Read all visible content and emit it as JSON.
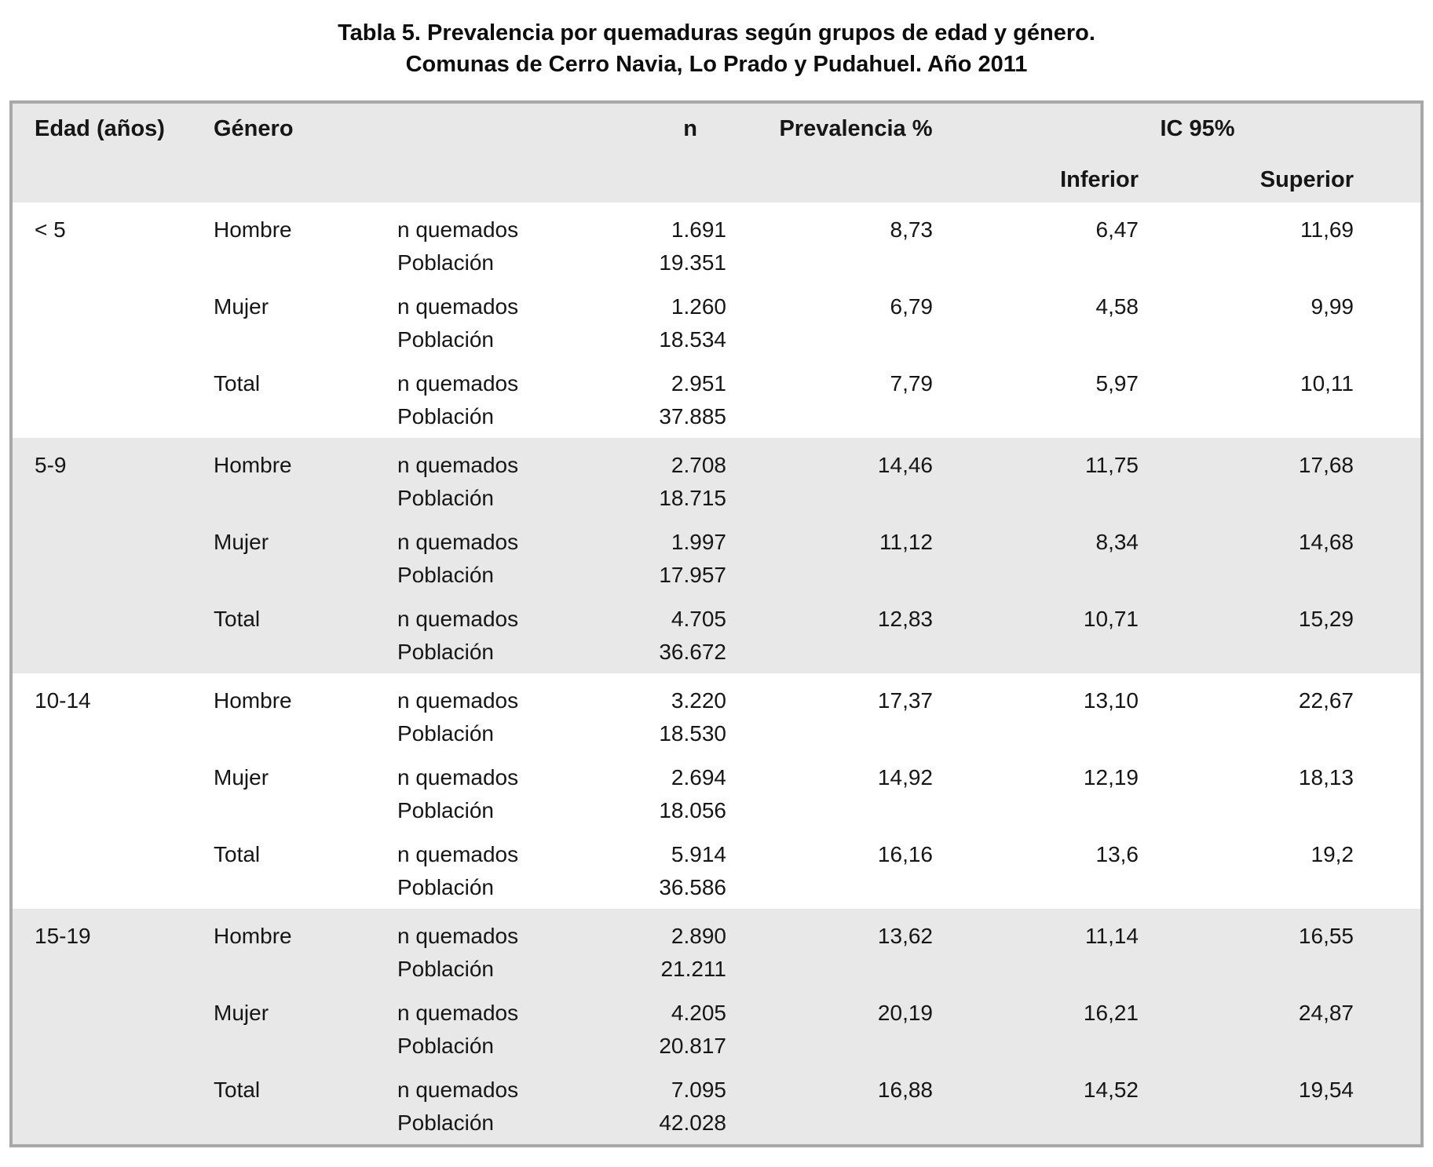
{
  "title": {
    "line1": "Tabla 5. Prevalencia por quemaduras según grupos de edad y género.",
    "line2": "Comunas de Cerro Navia, Lo Prado y Pudahuel. Año 2011"
  },
  "table": {
    "headers": {
      "age": "Edad (años)",
      "gender": "Género",
      "n": "n",
      "prevalence": "Prevalencia %",
      "ci": "IC 95%",
      "ci_lower": "Inferior",
      "ci_upper": "Superior"
    },
    "metric_labels": {
      "burned": "n quemados",
      "population": "Población"
    },
    "colors": {
      "shaded_bg": "#e8e8e8",
      "border": "#a8a8a8",
      "text": "#161616"
    },
    "groups": [
      {
        "age": "< 5",
        "shaded": false,
        "rows": [
          {
            "gender": "Hombre",
            "n_burned": "1.691",
            "population": "19.351",
            "prevalence": "8,73",
            "ci_lower": "6,47",
            "ci_upper": "11,69"
          },
          {
            "gender": "Mujer",
            "n_burned": "1.260",
            "population": "18.534",
            "prevalence": "6,79",
            "ci_lower": "4,58",
            "ci_upper": "9,99"
          },
          {
            "gender": "Total",
            "n_burned": "2.951",
            "population": "37.885",
            "prevalence": "7,79",
            "ci_lower": "5,97",
            "ci_upper": "10,11"
          }
        ]
      },
      {
        "age": "5-9",
        "shaded": true,
        "rows": [
          {
            "gender": "Hombre",
            "n_burned": "2.708",
            "population": "18.715",
            "prevalence": "14,46",
            "ci_lower": "11,75",
            "ci_upper": "17,68"
          },
          {
            "gender": "Mujer",
            "n_burned": "1.997",
            "population": "17.957",
            "prevalence": "11,12",
            "ci_lower": "8,34",
            "ci_upper": "14,68"
          },
          {
            "gender": "Total",
            "n_burned": "4.705",
            "population": "36.672",
            "prevalence": "12,83",
            "ci_lower": "10,71",
            "ci_upper": "15,29"
          }
        ]
      },
      {
        "age": "10-14",
        "shaded": false,
        "rows": [
          {
            "gender": "Hombre",
            "n_burned": "3.220",
            "population": "18.530",
            "prevalence": "17,37",
            "ci_lower": "13,10",
            "ci_upper": "22,67"
          },
          {
            "gender": "Mujer",
            "n_burned": "2.694",
            "population": "18.056",
            "prevalence": "14,92",
            "ci_lower": "12,19",
            "ci_upper": "18,13"
          },
          {
            "gender": "Total",
            "n_burned": "5.914",
            "population": "36.586",
            "prevalence": "16,16",
            "ci_lower": "13,6",
            "ci_upper": "19,2"
          }
        ]
      },
      {
        "age": "15-19",
        "shaded": true,
        "rows": [
          {
            "gender": "Hombre",
            "n_burned": "2.890",
            "population": "21.211",
            "prevalence": "13,62",
            "ci_lower": "11,14",
            "ci_upper": "16,55"
          },
          {
            "gender": "Mujer",
            "n_burned": "4.205",
            "population": "20.817",
            "prevalence": "20,19",
            "ci_lower": "16,21",
            "ci_upper": "24,87"
          },
          {
            "gender": "Total",
            "n_burned": "7.095",
            "population": "42.028",
            "prevalence": "16,88",
            "ci_lower": "14,52",
            "ci_upper": "19,54"
          }
        ]
      }
    ]
  }
}
